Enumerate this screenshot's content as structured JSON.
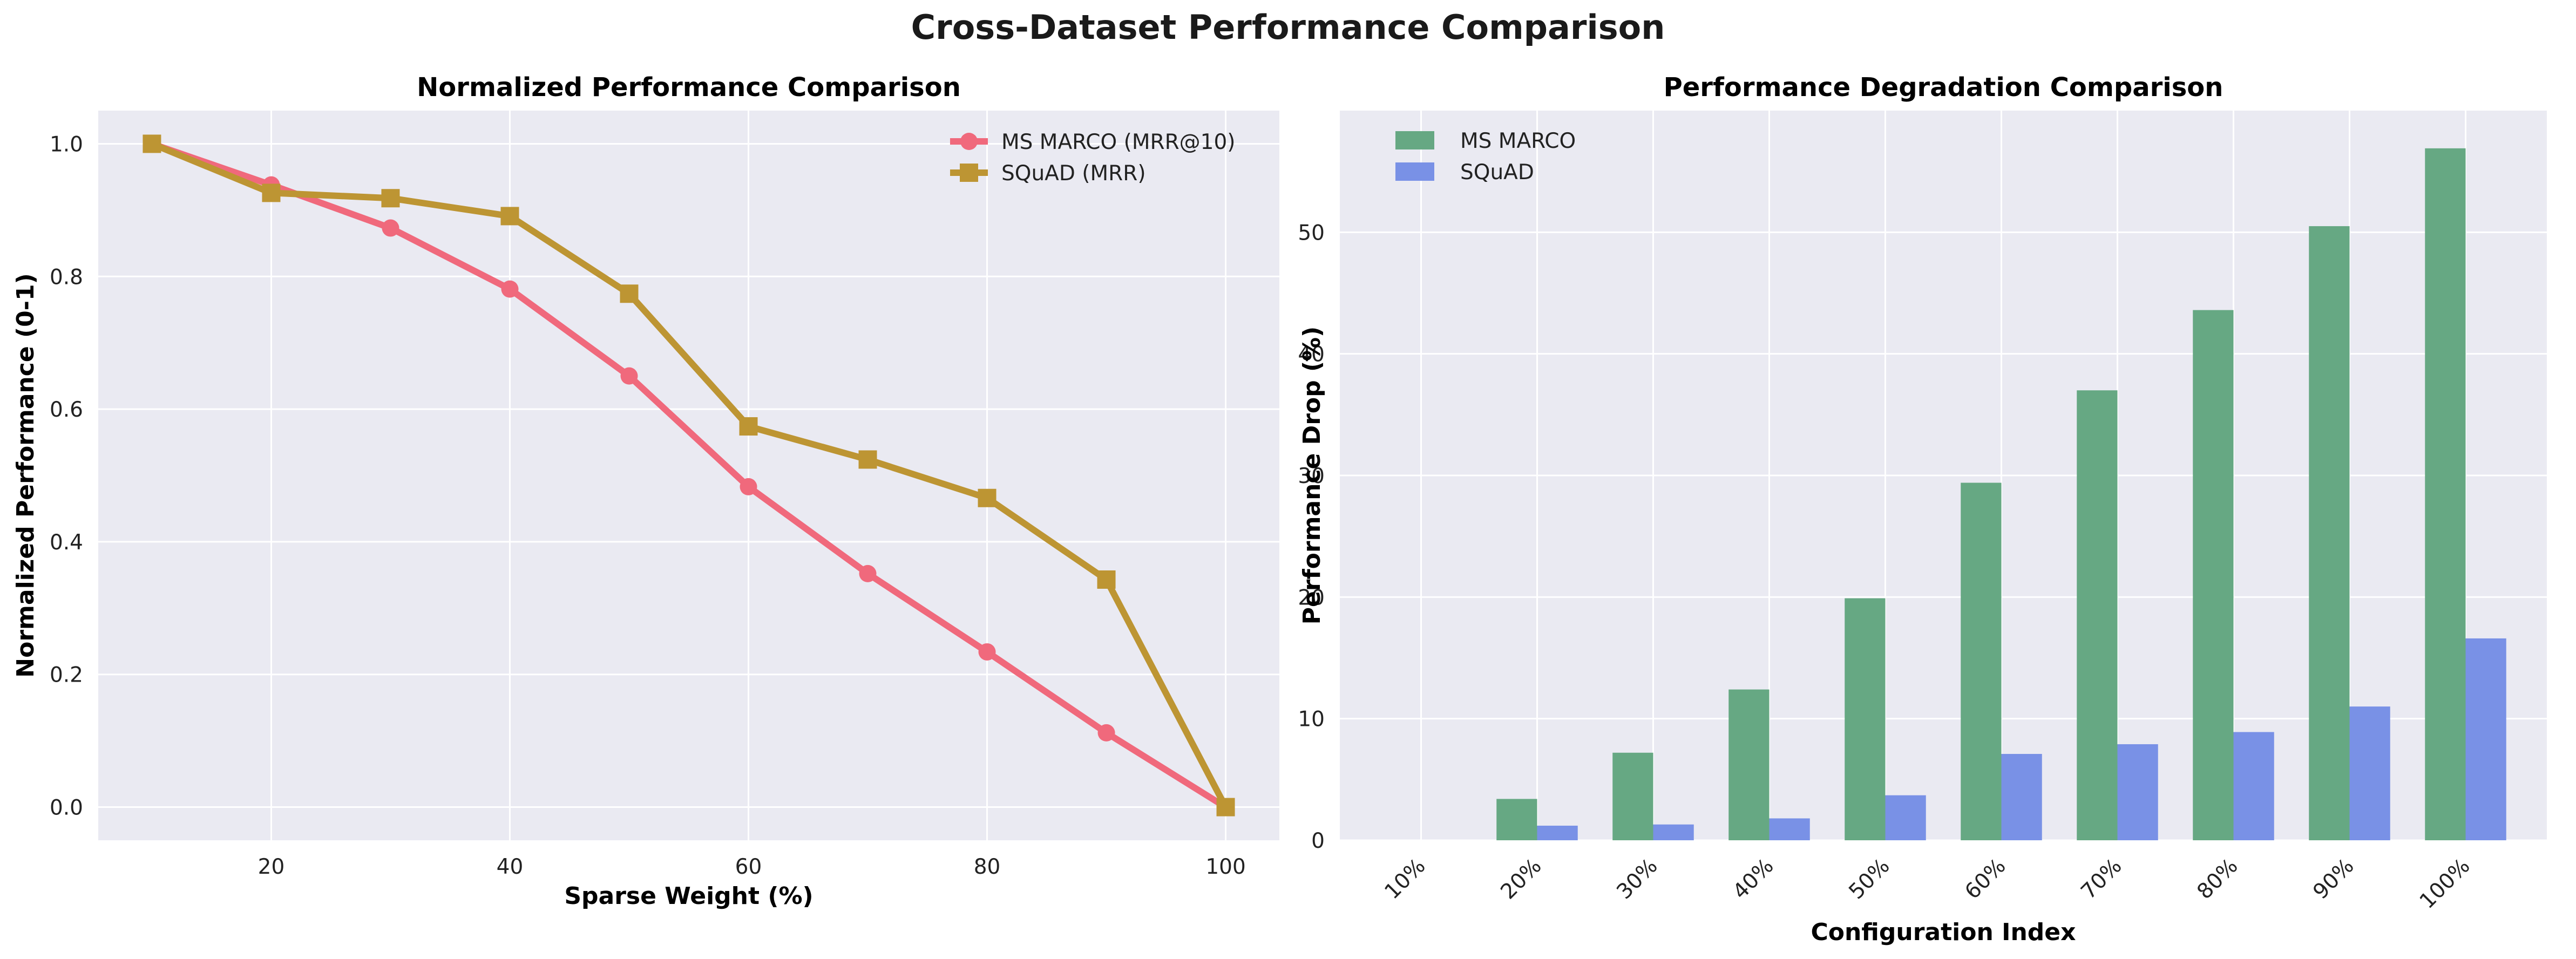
{
  "figure": {
    "title": "Cross-Dataset Performance Comparison"
  },
  "colors": {
    "background": "#eaeaf2",
    "grid": "#ffffff",
    "ms_marco_line": "#f0697c",
    "squad_line": "#bd9533",
    "ms_marco_bar": "#66a883",
    "squad_bar": "#7991e6"
  },
  "chart_data": [
    {
      "type": "line",
      "title": "Normalized Performance Comparison",
      "xlabel": "Sparse Weight (%)",
      "ylabel": "Normalized Performance (0-1)",
      "xlim": [
        5.5,
        104.5
      ],
      "ylim": [
        -0.05,
        1.05
      ],
      "xticks": [
        20,
        40,
        60,
        80,
        100
      ],
      "yticks": [
        0.0,
        0.2,
        0.4,
        0.6,
        0.8,
        1.0
      ],
      "xtick_labels": [
        "20",
        "40",
        "60",
        "80",
        "100"
      ],
      "ytick_labels": [
        "0.0",
        "0.2",
        "0.4",
        "0.6",
        "0.8",
        "1.0"
      ],
      "grid": true,
      "legend": "top-right",
      "x": [
        10,
        20,
        30,
        40,
        50,
        60,
        70,
        80,
        90,
        100
      ],
      "series": [
        {
          "name": "MS MARCO (MRR@10)",
          "marker": "circle",
          "values": [
            1.0,
            0.938,
            0.873,
            0.781,
            0.65,
            0.483,
            0.352,
            0.234,
            0.112,
            0.0
          ]
        },
        {
          "name": "SQuAD (MRR)",
          "marker": "square",
          "values": [
            1.0,
            0.926,
            0.918,
            0.891,
            0.774,
            0.574,
            0.524,
            0.466,
            0.343,
            0.0
          ]
        }
      ]
    },
    {
      "type": "bar",
      "title": "Performance Degradation Comparison",
      "xlabel": "Configuration Index",
      "ylabel": "Performance Drop (%)",
      "categories": [
        "10%",
        "20%",
        "30%",
        "40%",
        "50%",
        "60%",
        "70%",
        "80%",
        "90%",
        "100%"
      ],
      "ylim": [
        0,
        60
      ],
      "yticks": [
        0,
        10,
        20,
        30,
        40,
        50
      ],
      "ytick_labels": [
        "0",
        "10",
        "20",
        "30",
        "40",
        "50"
      ],
      "grid": true,
      "legend": "top-left",
      "series": [
        {
          "name": "MS MARCO",
          "values": [
            0,
            3.4,
            7.2,
            12.4,
            19.9,
            29.4,
            37.0,
            43.6,
            50.5,
            56.9
          ]
        },
        {
          "name": "SQuAD",
          "values": [
            0,
            1.2,
            1.3,
            1.8,
            3.7,
            7.1,
            7.9,
            8.9,
            11.0,
            16.6
          ]
        }
      ]
    }
  ]
}
